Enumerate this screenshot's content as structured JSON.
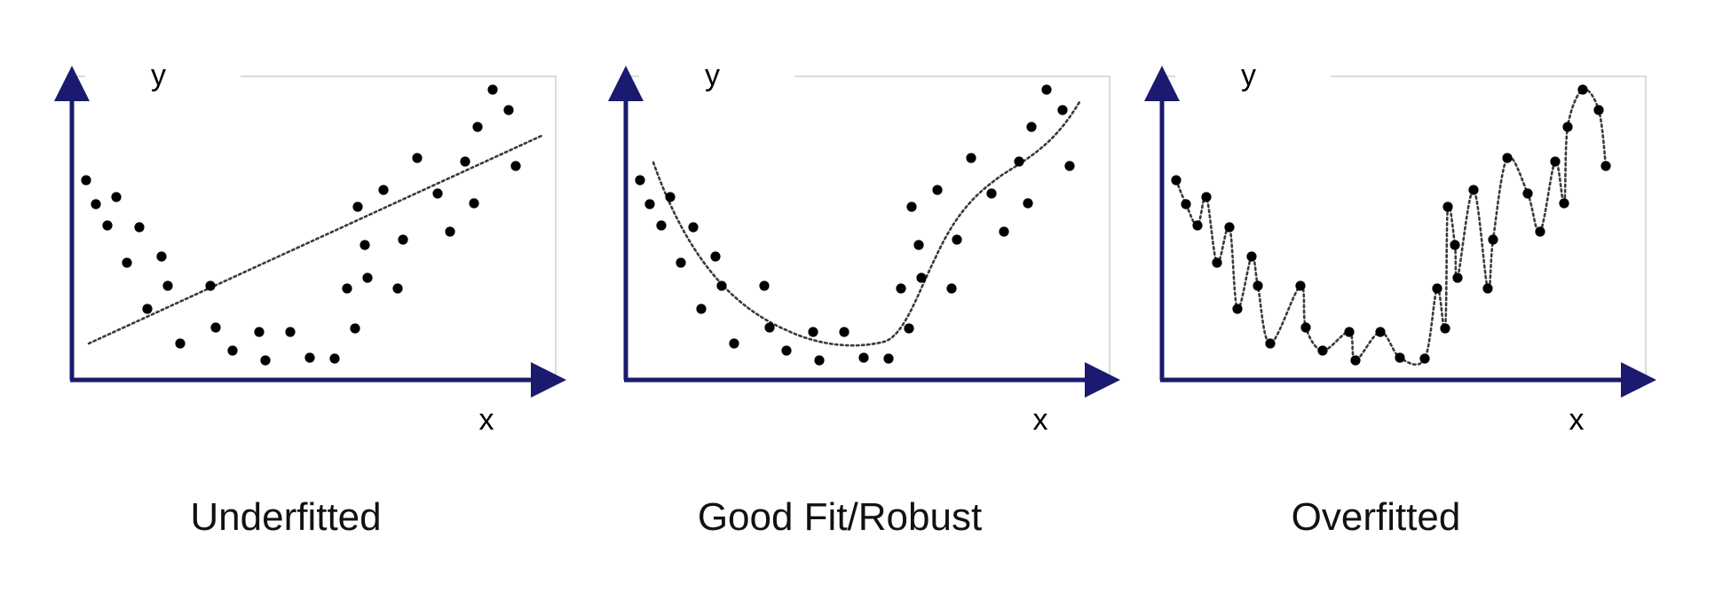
{
  "accent_color": "#1a1a6e",
  "panels": [
    {
      "caption": "Underfitted",
      "x_label": "x",
      "y_label": "y",
      "fit": "linear"
    },
    {
      "caption": "Good Fit/Robust",
      "x_label": "x",
      "y_label": "y",
      "fit": "smooth-curve"
    },
    {
      "caption": "Overfitted",
      "x_label": "x",
      "y_label": "y",
      "fit": "through-every-point"
    }
  ]
}
